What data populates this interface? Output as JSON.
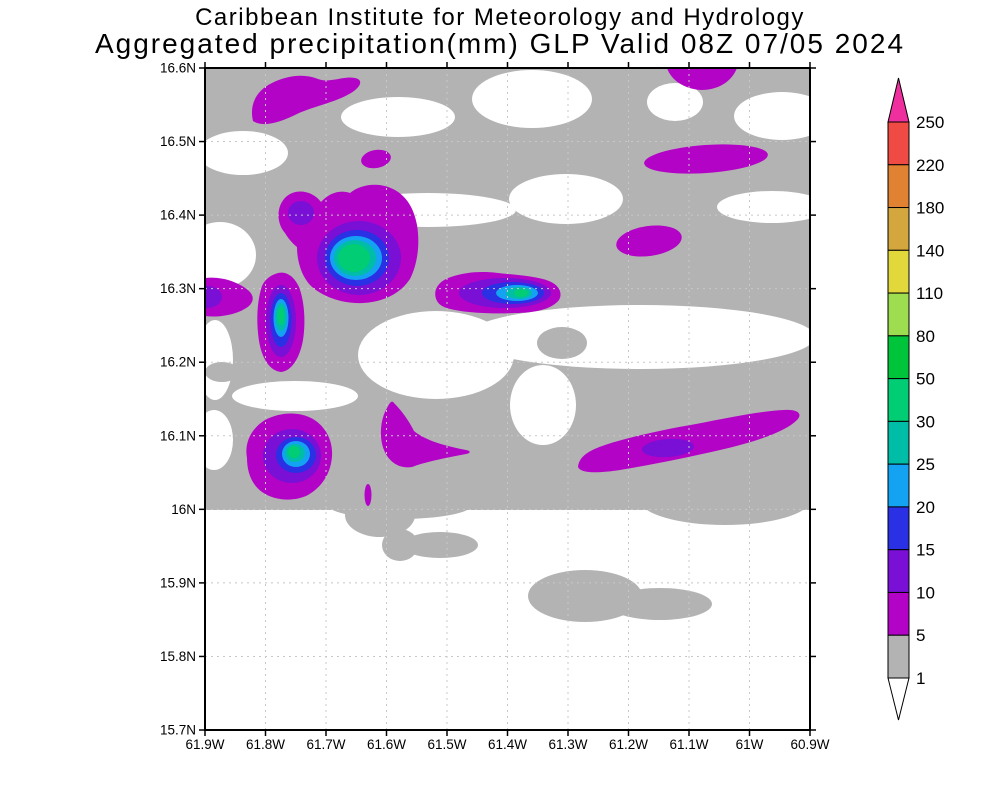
{
  "title": {
    "line1": "Caribbean Institute for Meteorology and Hydrology",
    "line2": "Aggregated precipitation(mm) GLP Valid 08Z 07/05 2024"
  },
  "palette": {
    "gray": "#b3b3b3",
    "m5": "#b303c6",
    "v10": "#7a0fd6",
    "b15": "#2a30e4",
    "lb20": "#14a3f2",
    "t25": "#00bda8",
    "g30": "#00cd74",
    "g50": "#00c43a",
    "yg80": "#9edc50",
    "y110": "#e2d83c",
    "t140": "#d4a73e",
    "o180": "#e08232",
    "r220": "#f04a45",
    "pink": "#ee2f9d",
    "gridcol": "#c8c8c8"
  },
  "chart_data": {
    "type": "heatmap",
    "subtype": "filled-contour-precipitation-map",
    "title": "Aggregated precipitation(mm) GLP Valid 08Z 07/05 2024",
    "institution": "Caribbean Institute for Meteorology and Hydrology",
    "units": "mm",
    "xlabel": "",
    "ylabel": "",
    "lat_range_deg_N": [
      15.7,
      16.6
    ],
    "lon_range_deg_W": [
      61.9,
      60.9
    ],
    "grid": "on",
    "yticks": [
      "16.6N",
      "16.5N",
      "16.4N",
      "16.3N",
      "16.2N",
      "16.1N",
      "16N",
      "15.9N",
      "15.8N",
      "15.7N"
    ],
    "xticks": [
      "61.9W",
      "61.8W",
      "61.7W",
      "61.6W",
      "61.5W",
      "61.4W",
      "61.3W",
      "61.2W",
      "61.1W",
      "61W",
      "60.9W"
    ],
    "colorbar": {
      "orientation": "vertical",
      "labels_top_to_bottom": [
        "250",
        "220",
        "180",
        "140",
        "110",
        "80",
        "50",
        "30",
        "25",
        "20",
        "15",
        "10",
        "5",
        "1"
      ],
      "segment_palette_keys_top_to_bottom": [
        "r220",
        "o180",
        "t140",
        "y110",
        "yg80",
        "g50",
        "g30",
        "t25",
        "lb20",
        "b15",
        "v10",
        "m5",
        "gray"
      ],
      "above_top_palette_key": "pink",
      "below_bottom_color": "#ffffff"
    },
    "features": [
      {
        "name": "cell-top-left-band",
        "center_lon_W": 61.74,
        "center_lat_N": 16.56,
        "peak_mm": "5-10"
      },
      {
        "name": "cell-small-16.48N-61.62W",
        "center_lon_W": 61.62,
        "center_lat_N": 16.48,
        "peak_mm": "5-10"
      },
      {
        "name": "cell-top-edge-61.08W",
        "center_lon_W": 61.08,
        "center_lat_N": 16.59,
        "peak_mm": "5-10"
      },
      {
        "name": "cell-elongated-16.48N-61.07W",
        "center_lon_W": 61.07,
        "center_lat_N": 16.48,
        "peak_mm": "5-10"
      },
      {
        "name": "cell-small-16.36N-61.17W",
        "center_lon_W": 61.17,
        "center_lat_N": 16.36,
        "peak_mm": "5-10"
      },
      {
        "name": "cell-max-16.34N-61.65W",
        "center_lon_W": 61.65,
        "center_lat_N": 16.34,
        "peak_mm": "30-50"
      },
      {
        "name": "cell-vertical-16.26N-61.77W",
        "center_lon_W": 61.77,
        "center_lat_N": 16.26,
        "peak_mm": "30-50"
      },
      {
        "name": "cell-west-edge-16.29N",
        "center_lon_W": 61.9,
        "center_lat_N": 16.29,
        "peak_mm": "10-15"
      },
      {
        "name": "cell-16.29N-61.38W",
        "center_lon_W": 61.38,
        "center_lat_N": 16.29,
        "peak_mm": "30-50"
      },
      {
        "name": "cell-wedge-16.10N-61.58W",
        "center_lon_W": 61.58,
        "center_lat_N": 16.1,
        "peak_mm": "5-10"
      },
      {
        "name": "cell-16.08N-61.75W",
        "center_lon_W": 61.75,
        "center_lat_N": 16.08,
        "peak_mm": "30-50"
      },
      {
        "name": "cell-band-16.08N-61.13W",
        "center_lon_W": 61.13,
        "center_lat_N": 16.08,
        "peak_mm": "10-15"
      },
      {
        "name": "cell-sliver-16.02N-61.63W",
        "center_lon_W": 61.63,
        "center_lat_N": 16.02,
        "peak_mm": "5-10"
      },
      {
        "name": "light-area-1-5mm",
        "description": "gray regions",
        "value_mm": "1-5"
      },
      {
        "name": "dry-areas",
        "description": "white regions",
        "value_mm": "<1"
      }
    ]
  }
}
